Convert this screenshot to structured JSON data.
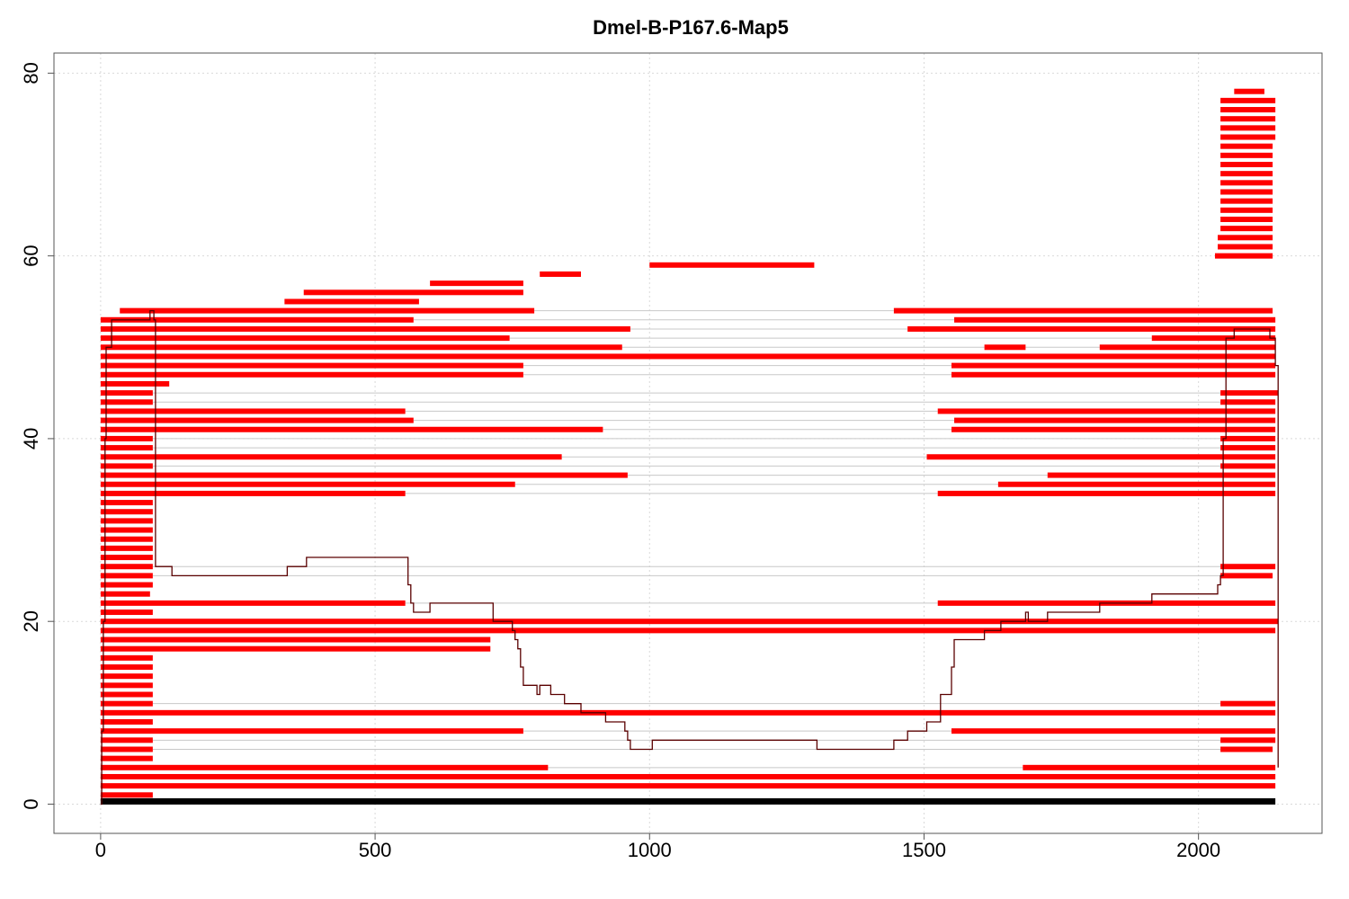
{
  "chart_data": {
    "type": "line",
    "title": "Dmel-B-P167.6-Map5",
    "xlabel": "",
    "ylabel": "",
    "xlim": [
      -85,
      2225
    ],
    "ylim": [
      -3.2,
      82.2
    ],
    "x_ticks": [
      0,
      500,
      1000,
      1500,
      2000
    ],
    "y_ticks": [
      0,
      20,
      40,
      60,
      80
    ],
    "grid": true,
    "colors": {
      "reads": "#ff0000",
      "reference": "#000000",
      "coverage": "#5a0000",
      "link": "#c8c8c8",
      "grid": "#d9d9d9"
    },
    "reference": {
      "x_start": 0,
      "x_end": 2140,
      "y": 0.3
    },
    "reads": [
      {
        "y": 1,
        "segments": [
          [
            0,
            95
          ]
        ]
      },
      {
        "y": 2,
        "segments": [
          [
            0,
            2140
          ]
        ]
      },
      {
        "y": 3,
        "segments": [
          [
            0,
            2140
          ]
        ]
      },
      {
        "y": 4,
        "segments": [
          [
            0,
            815
          ],
          [
            1680,
            2140
          ]
        ]
      },
      {
        "y": 5,
        "segments": [
          [
            0,
            95
          ]
        ]
      },
      {
        "y": 6,
        "segments": [
          [
            0,
            95
          ],
          [
            2040,
            2135
          ]
        ]
      },
      {
        "y": 7,
        "segments": [
          [
            0,
            95
          ],
          [
            2040,
            2140
          ]
        ]
      },
      {
        "y": 8,
        "segments": [
          [
            0,
            770
          ],
          [
            1550,
            2140
          ]
        ]
      },
      {
        "y": 9,
        "segments": [
          [
            0,
            95
          ]
        ]
      },
      {
        "y": 10,
        "segments": [
          [
            0,
            2140
          ]
        ]
      },
      {
        "y": 11,
        "segments": [
          [
            0,
            95
          ],
          [
            2040,
            2140
          ]
        ]
      },
      {
        "y": 12,
        "segments": [
          [
            0,
            95
          ]
        ]
      },
      {
        "y": 13,
        "segments": [
          [
            0,
            95
          ]
        ]
      },
      {
        "y": 14,
        "segments": [
          [
            0,
            95
          ]
        ]
      },
      {
        "y": 15,
        "segments": [
          [
            0,
            95
          ]
        ]
      },
      {
        "y": 16,
        "segments": [
          [
            0,
            95
          ]
        ]
      },
      {
        "y": 17,
        "segments": [
          [
            0,
            710
          ]
        ]
      },
      {
        "y": 18,
        "segments": [
          [
            0,
            710
          ]
        ]
      },
      {
        "y": 19,
        "segments": [
          [
            0,
            2140
          ]
        ]
      },
      {
        "y": 20,
        "segments": [
          [
            0,
            2145
          ]
        ]
      },
      {
        "y": 21,
        "segments": [
          [
            0,
            95
          ]
        ]
      },
      {
        "y": 22,
        "segments": [
          [
            0,
            555
          ],
          [
            1525,
            2140
          ]
        ]
      },
      {
        "y": 23,
        "segments": [
          [
            0,
            90
          ]
        ]
      },
      {
        "y": 24,
        "segments": [
          [
            0,
            95
          ]
        ]
      },
      {
        "y": 25,
        "segments": [
          [
            0,
            95
          ],
          [
            2040,
            2135
          ]
        ]
      },
      {
        "y": 26,
        "segments": [
          [
            0,
            95
          ],
          [
            2040,
            2140
          ]
        ]
      },
      {
        "y": 27,
        "segments": [
          [
            0,
            95
          ]
        ]
      },
      {
        "y": 28,
        "segments": [
          [
            0,
            95
          ]
        ]
      },
      {
        "y": 29,
        "segments": [
          [
            0,
            95
          ]
        ]
      },
      {
        "y": 30,
        "segments": [
          [
            0,
            95
          ]
        ]
      },
      {
        "y": 31,
        "segments": [
          [
            0,
            95
          ]
        ]
      },
      {
        "y": 32,
        "segments": [
          [
            0,
            95
          ]
        ]
      },
      {
        "y": 33,
        "segments": [
          [
            0,
            95
          ]
        ]
      },
      {
        "y": 34,
        "segments": [
          [
            0,
            555
          ],
          [
            1525,
            2140
          ]
        ]
      },
      {
        "y": 35,
        "segments": [
          [
            0,
            755
          ],
          [
            1635,
            2140
          ]
        ]
      },
      {
        "y": 36,
        "segments": [
          [
            0,
            960
          ],
          [
            1725,
            2140
          ]
        ]
      },
      {
        "y": 37,
        "segments": [
          [
            0,
            95
          ],
          [
            2040,
            2140
          ]
        ]
      },
      {
        "y": 38,
        "segments": [
          [
            0,
            840
          ],
          [
            1505,
            2140
          ]
        ]
      },
      {
        "y": 39,
        "segments": [
          [
            0,
            95
          ],
          [
            2040,
            2140
          ]
        ]
      },
      {
        "y": 40,
        "segments": [
          [
            0,
            95
          ],
          [
            2040,
            2140
          ]
        ]
      },
      {
        "y": 41,
        "segments": [
          [
            0,
            915
          ],
          [
            1550,
            2140
          ]
        ]
      },
      {
        "y": 42,
        "segments": [
          [
            0,
            570
          ],
          [
            1555,
            2140
          ]
        ]
      },
      {
        "y": 43,
        "segments": [
          [
            0,
            555
          ],
          [
            1525,
            2140
          ]
        ]
      },
      {
        "y": 44,
        "segments": [
          [
            0,
            95
          ],
          [
            2040,
            2140
          ]
        ]
      },
      {
        "y": 45,
        "segments": [
          [
            0,
            95
          ],
          [
            2040,
            2145
          ]
        ]
      },
      {
        "y": 46,
        "segments": [
          [
            0,
            125
          ]
        ]
      },
      {
        "y": 47,
        "segments": [
          [
            0,
            770
          ],
          [
            1550,
            2140
          ]
        ]
      },
      {
        "y": 48,
        "segments": [
          [
            0,
            770
          ],
          [
            1550,
            2140
          ]
        ]
      },
      {
        "y": 49,
        "segments": [
          [
            0,
            2140
          ]
        ]
      },
      {
        "y": 50,
        "segments": [
          [
            0,
            950
          ],
          [
            1610,
            1685
          ],
          [
            1820,
            2140
          ]
        ]
      },
      {
        "y": 51,
        "segments": [
          [
            0,
            745
          ],
          [
            1915,
            2140
          ]
        ]
      },
      {
        "y": 52,
        "segments": [
          [
            0,
            965
          ],
          [
            1470,
            2140
          ]
        ]
      },
      {
        "y": 53,
        "segments": [
          [
            0,
            570
          ],
          [
            1555,
            2140
          ]
        ]
      },
      {
        "y": 54,
        "segments": [
          [
            35,
            790
          ],
          [
            1445,
            2135
          ]
        ]
      },
      {
        "y": 55,
        "segments": [
          [
            335,
            580
          ]
        ]
      },
      {
        "y": 56,
        "segments": [
          [
            370,
            770
          ]
        ]
      },
      {
        "y": 57,
        "segments": [
          [
            600,
            770
          ]
        ]
      },
      {
        "y": 58,
        "segments": [
          [
            800,
            875
          ]
        ]
      },
      {
        "y": 59,
        "segments": [
          [
            1000,
            1300
          ]
        ]
      },
      {
        "y": 60,
        "segments": [
          [
            2030,
            2135
          ]
        ]
      },
      {
        "y": 61,
        "segments": [
          [
            2035,
            2135
          ]
        ]
      },
      {
        "y": 62,
        "segments": [
          [
            2035,
            2135
          ]
        ]
      },
      {
        "y": 63,
        "segments": [
          [
            2040,
            2135
          ]
        ]
      },
      {
        "y": 64,
        "segments": [
          [
            2040,
            2135
          ]
        ]
      },
      {
        "y": 65,
        "segments": [
          [
            2040,
            2135
          ]
        ]
      },
      {
        "y": 66,
        "segments": [
          [
            2040,
            2135
          ]
        ]
      },
      {
        "y": 67,
        "segments": [
          [
            2040,
            2135
          ]
        ]
      },
      {
        "y": 68,
        "segments": [
          [
            2040,
            2135
          ]
        ]
      },
      {
        "y": 69,
        "segments": [
          [
            2040,
            2135
          ]
        ]
      },
      {
        "y": 70,
        "segments": [
          [
            2040,
            2135
          ]
        ]
      },
      {
        "y": 71,
        "segments": [
          [
            2040,
            2135
          ]
        ]
      },
      {
        "y": 72,
        "segments": [
          [
            2040,
            2135
          ]
        ]
      },
      {
        "y": 73,
        "segments": [
          [
            2040,
            2140
          ]
        ]
      },
      {
        "y": 74,
        "segments": [
          [
            2040,
            2140
          ]
        ]
      },
      {
        "y": 75,
        "segments": [
          [
            2040,
            2140
          ]
        ]
      },
      {
        "y": 76,
        "segments": [
          [
            2040,
            2140
          ]
        ]
      },
      {
        "y": 77,
        "segments": [
          [
            2040,
            2140
          ]
        ]
      },
      {
        "y": 78,
        "segments": [
          [
            2065,
            2120
          ]
        ]
      }
    ],
    "coverage": {
      "x": [
        0,
        2,
        5,
        8,
        10,
        20,
        90,
        97,
        100,
        125,
        130,
        335,
        340,
        370,
        375,
        555,
        560,
        565,
        570,
        580,
        595,
        600,
        710,
        715,
        745,
        750,
        755,
        760,
        765,
        770,
        790,
        795,
        800,
        810,
        820,
        840,
        845,
        870,
        875,
        915,
        920,
        950,
        955,
        960,
        965,
        1000,
        1005,
        1300,
        1305,
        1440,
        1445,
        1465,
        1470,
        1500,
        1505,
        1525,
        1530,
        1545,
        1550,
        1555,
        1605,
        1610,
        1635,
        1640,
        1680,
        1685,
        1690,
        1720,
        1725,
        1815,
        1820,
        1910,
        1915,
        2030,
        2035,
        2040,
        2045,
        2050,
        2060,
        2065,
        2120,
        2130,
        2140,
        2145
      ],
      "y": [
        0,
        8,
        20,
        40,
        50,
        53,
        54,
        53,
        26,
        26,
        25,
        25,
        26,
        26,
        27,
        27,
        24,
        22,
        21,
        21,
        21,
        22,
        22,
        20,
        20,
        19,
        18,
        17,
        15,
        13,
        13,
        12,
        13,
        13,
        12,
        12,
        11,
        11,
        10,
        10,
        9,
        9,
        8,
        7,
        6,
        6,
        7,
        7,
        6,
        6,
        7,
        7,
        8,
        8,
        9,
        9,
        12,
        12,
        15,
        18,
        18,
        19,
        19,
        20,
        20,
        21,
        20,
        20,
        21,
        21,
        22,
        22,
        23,
        23,
        24,
        25,
        40,
        51,
        51,
        52,
        52,
        51,
        48,
        4
      ]
    }
  }
}
